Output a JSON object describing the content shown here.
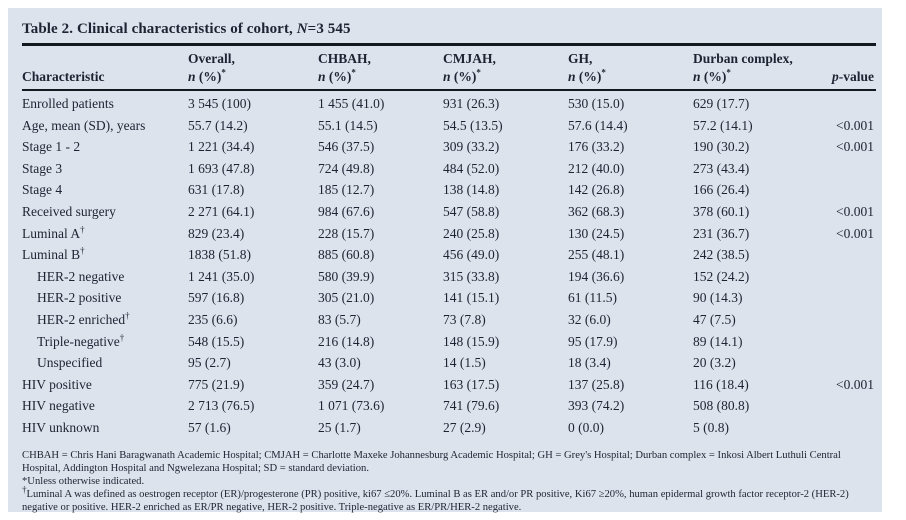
{
  "table": {
    "title": {
      "prefix": "Table 2. Clinical characteristics of cohort, ",
      "n_italic": "N",
      "suffix": "=3 545"
    },
    "columns": {
      "characteristic_label": "Characteristic",
      "groups": [
        "Overall,",
        "CHBAH,",
        "CMJAH,",
        "GH,",
        "Durban complex,"
      ],
      "value_sub_n": "n",
      "value_sub_mid": " (%)",
      "value_sub_sup": "*",
      "pvalue_p": "p",
      "pvalue_rest": "-value"
    },
    "rows": [
      {
        "label": "Enrolled patients",
        "indent": false,
        "overall": "3 545 (100)",
        "chbah": "1 455 (41.0)",
        "cmjah": "931 (26.3)",
        "gh": "530 (15.0)",
        "durban": "629 (17.7)",
        "p": ""
      },
      {
        "label": "Age, mean (SD), years",
        "indent": false,
        "overall": "55.7 (14.2)",
        "chbah": "55.1 (14.5)",
        "cmjah": "54.5 (13.5)",
        "gh": "57.6 (14.4)",
        "durban": "57.2 (14.1)",
        "p": "<0.001"
      },
      {
        "label": "Stage 1 - 2",
        "indent": false,
        "overall": "1 221 (34.4)",
        "chbah": "546 (37.5)",
        "cmjah": "309 (33.2)",
        "gh": "176 (33.2)",
        "durban": "190 (30.2)",
        "p": "<0.001"
      },
      {
        "label": "Stage 3",
        "indent": false,
        "overall": "1 693 (47.8)",
        "chbah": "724 (49.8)",
        "cmjah": "484 (52.0)",
        "gh": "212 (40.0)",
        "durban": "273 (43.4)",
        "p": ""
      },
      {
        "label": "Stage 4",
        "indent": false,
        "overall": "631 (17.8)",
        "chbah": "185 (12.7)",
        "cmjah": "138 (14.8)",
        "gh": "142 (26.8)",
        "durban": "166 (26.4)",
        "p": ""
      },
      {
        "label": "Received surgery",
        "indent": false,
        "overall": "2 271 (64.1)",
        "chbah": "984 (67.6)",
        "cmjah": "547 (58.8)",
        "gh": "362 (68.3)",
        "durban": "378 (60.1)",
        "p": "<0.001"
      },
      {
        "label": "Luminal A†",
        "indent": false,
        "overall": "829 (23.4)",
        "chbah": "228 (15.7)",
        "cmjah": "240 (25.8)",
        "gh": "130 (24.5)",
        "durban": "231 (36.7)",
        "p": "<0.001"
      },
      {
        "label": "Luminal B†",
        "indent": false,
        "overall": "1838 (51.8)",
        "chbah": "885 (60.8)",
        "cmjah": "456 (49.0)",
        "gh": "255 (48.1)",
        "durban": "242 (38.5)",
        "p": ""
      },
      {
        "label": "HER-2 negative",
        "indent": true,
        "overall": "1 241 (35.0)",
        "chbah": "580 (39.9)",
        "cmjah": "315 (33.8)",
        "gh": "194 (36.6)",
        "durban": "152 (24.2)",
        "p": ""
      },
      {
        "label": "HER-2 positive",
        "indent": true,
        "overall": "597 (16.8)",
        "chbah": "305 (21.0)",
        "cmjah": "141 (15.1)",
        "gh": "61 (11.5)",
        "durban": "90 (14.3)",
        "p": ""
      },
      {
        "label": "HER-2 enriched†",
        "indent": true,
        "overall": "235 (6.6)",
        "chbah": "83 (5.7)",
        "cmjah": "73 (7.8)",
        "gh": "32 (6.0)",
        "durban": "47 (7.5)",
        "p": ""
      },
      {
        "label": "Triple-negative†",
        "indent": true,
        "overall": "548 (15.5)",
        "chbah": "216 (14.8)",
        "cmjah": "148 (15.9)",
        "gh": "95 (17.9)",
        "durban": "89 (14.1)",
        "p": ""
      },
      {
        "label": "Unspecified",
        "indent": true,
        "overall": "95 (2.7)",
        "chbah": "43 (3.0)",
        "cmjah": "14 (1.5)",
        "gh": "18 (3.4)",
        "durban": "20 (3.2)",
        "p": ""
      },
      {
        "label": "HIV positive",
        "indent": false,
        "overall": "775 (21.9)",
        "chbah": "359 (24.7)",
        "cmjah": "163 (17.5)",
        "gh": "137 (25.8)",
        "durban": "116 (18.4)",
        "p": "<0.001"
      },
      {
        "label": "HIV negative",
        "indent": false,
        "overall": "2 713 (76.5)",
        "chbah": "1 071 (73.6)",
        "cmjah": "741 (79.6)",
        "gh": "393 (74.2)",
        "durban": "508 (80.8)",
        "p": ""
      },
      {
        "label": "HIV unknown",
        "indent": false,
        "overall": "57 (1.6)",
        "chbah": "25 (1.7)",
        "cmjah": "27 (2.9)",
        "gh": "0 (0.0)",
        "durban": "5 (0.8)",
        "p": ""
      }
    ],
    "footnotes": [
      "CHBAH = Chris Hani Baragwanath Academic Hospital; CMJAH = Charlotte Maxeke Johannesburg Academic Hospital; GH = Grey's Hospital; Durban complex = Inkosi Albert Luthuli Central Hospital, Addington Hospital and Ngwelezana Hospital; SD = standard deviation.",
      "*Unless otherwise indicated.",
      "†Luminal A was defined as oestrogen receptor (ER)/progesterone (PR) positive, ki67 ≤20%. Luminal B as ER and/or PR positive, Ki67 ≥20%, human epidermal growth factor receptor-2 (HER-2) negative or positive. HER-2 enriched as ER/PR negative, HER-2 positive. Triple-negative as ER/PR/HER-2 negative."
    ]
  }
}
